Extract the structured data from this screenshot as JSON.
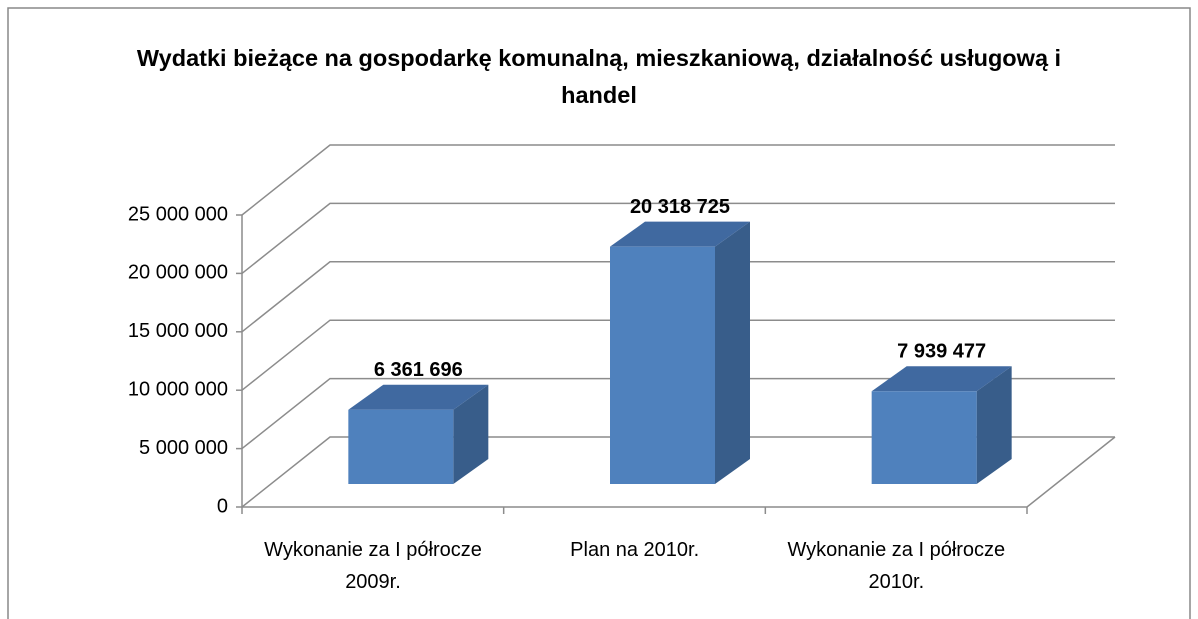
{
  "chart_data": {
    "type": "bar3d",
    "title": "Wydatki bieżące na gospodarkę komunalną, mieszkaniową, działalność usługową i handel",
    "categories": [
      "Wykonanie za I półrocze 2009r.",
      "Plan na 2010r.",
      "Wykonanie za I półrocze 2010r."
    ],
    "values": [
      6361696,
      20318725,
      7939477
    ],
    "value_labels": [
      "6 361 696",
      "20 318 725",
      "7 939 477"
    ],
    "color": "#4f81bd",
    "ylim": [
      0,
      25000000
    ],
    "yticks": [
      0,
      {
        "value": 5000000,
        "label": "5 000 000"
      },
      {
        "value": 10000000,
        "label": "10 000 000"
      },
      {
        "value": 15000000,
        "label": "15 000 000"
      },
      {
        "value": 20000000,
        "label": "20 000 000"
      },
      {
        "value": 25000000,
        "label": "25 000 000"
      }
    ],
    "grid": true
  }
}
